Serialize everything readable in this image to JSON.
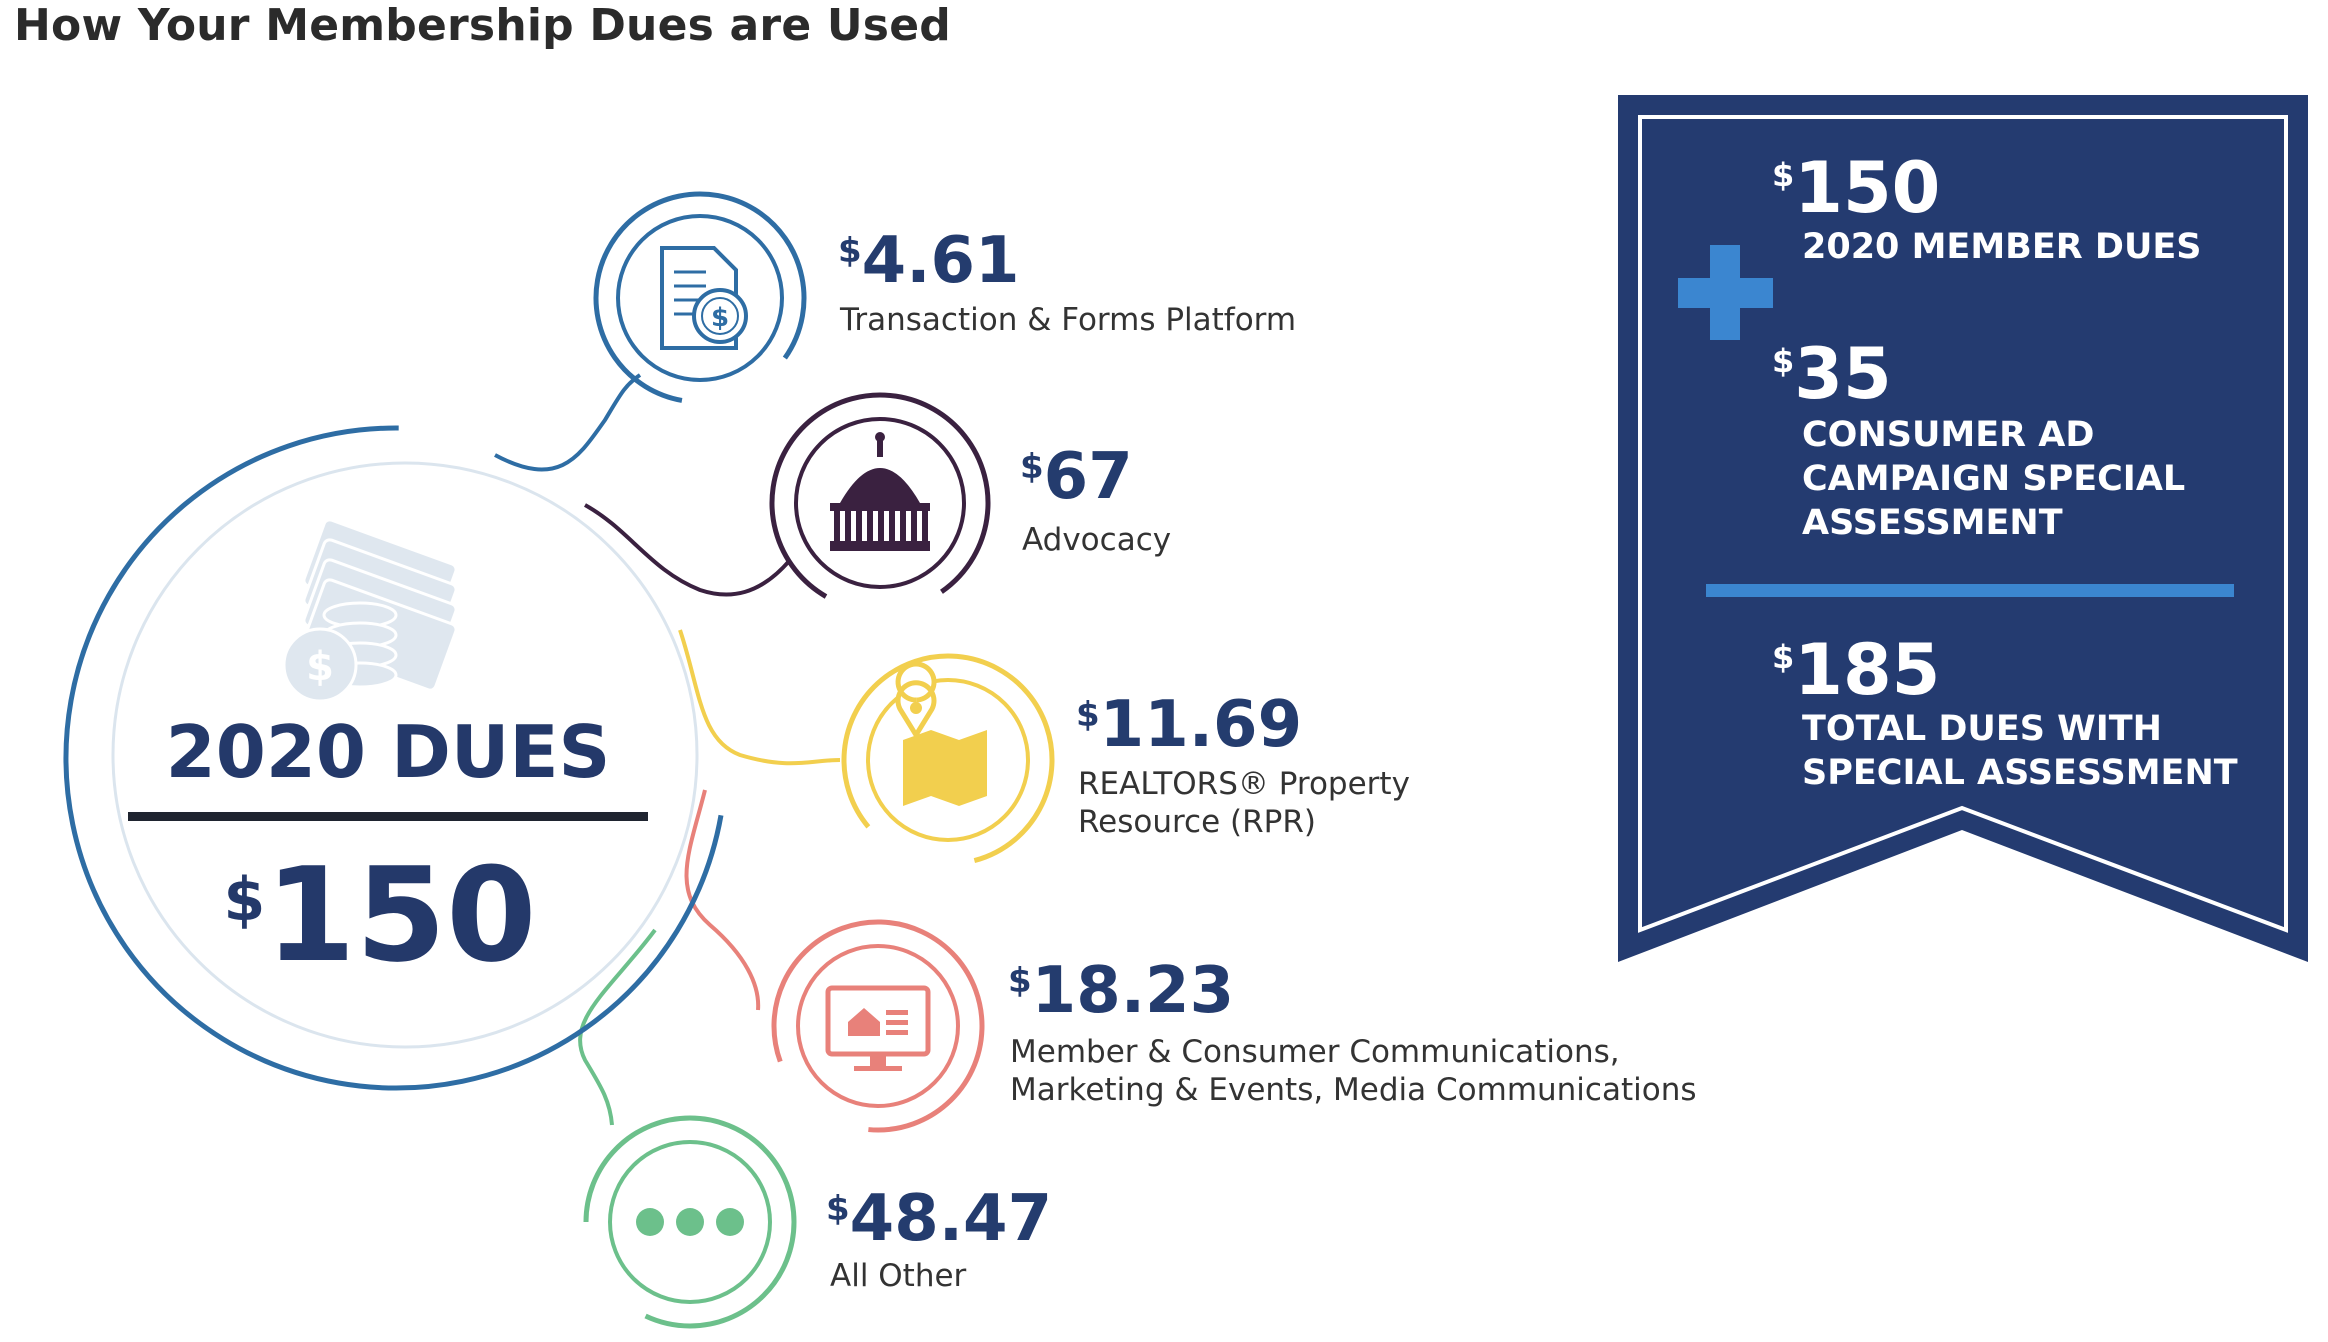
{
  "page": {
    "title": "How Your Membership Dues are Used"
  },
  "center": {
    "title": "2020 DUES",
    "currency": "$",
    "amount": "150",
    "icon": "money-stack-icon"
  },
  "items": [
    {
      "currency": "$",
      "amount": "4.61",
      "label_lines": [
        "Transaction & Forms Platform"
      ],
      "color": "#2e6da4",
      "icon": "document-dollar-icon"
    },
    {
      "currency": "$",
      "amount": "67",
      "label_lines": [
        "Advocacy"
      ],
      "color": "#3a2140",
      "icon": "capitol-dome-icon"
    },
    {
      "currency": "$",
      "amount": "11.69",
      "label_lines": [
        "REALTORS® Property",
        "Resource (RPR)"
      ],
      "color": "#f2cf4e",
      "icon": "map-pin-icon"
    },
    {
      "currency": "$",
      "amount": "18.23",
      "label_lines": [
        "Member & Consumer Communications,",
        "Marketing & Events, Media Communications"
      ],
      "color": "#e8817a",
      "icon": "monitor-house-icon"
    },
    {
      "currency": "$",
      "amount": "48.47",
      "label_lines": [
        "All Other"
      ],
      "color": "#6cc08b",
      "icon": "ellipsis-icon"
    }
  ],
  "banner": {
    "background": "#243b70",
    "plus_color": "#3b86d0",
    "highlight_color": "#f2c94c",
    "entries": [
      {
        "currency": "$",
        "amount": "150",
        "label_lines": [
          "2020 MEMBER DUES"
        ]
      },
      {
        "currency": "$",
        "amount": "35",
        "label_lines": [
          "CONSUMER AD",
          "CAMPAIGN SPECIAL",
          "ASSESSMENT"
        ]
      }
    ],
    "total": {
      "currency": "$",
      "amount": "185",
      "label_lines": [
        "TOTAL DUES WITH",
        "SPECIAL ASSESSMENT"
      ]
    }
  }
}
